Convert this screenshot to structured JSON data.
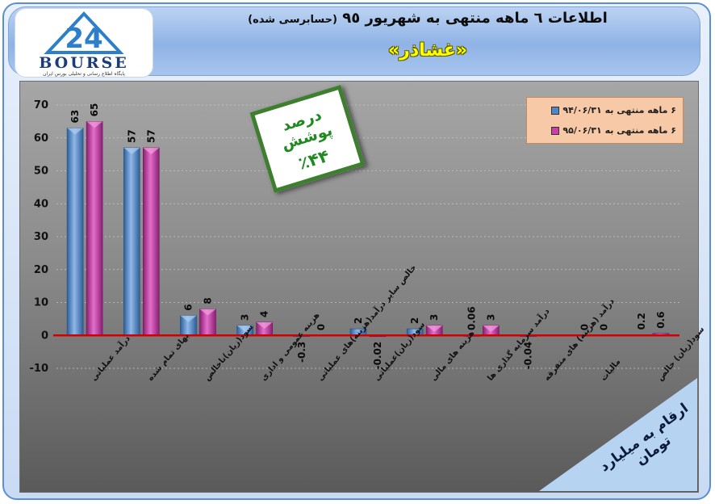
{
  "header": {
    "title": "اطلاعات ٦ ماهه منتهی به شهریور ٩٥",
    "title_note": "(حسابرسی شده)",
    "company": "«غشاذر»",
    "logo_text": "BOURSE",
    "logo_sub": "پایگاه اطلاع رسانی و تحلیلی بورس ایران"
  },
  "coverage_box": {
    "label": "درصد پوشش",
    "value": "٪۴۴"
  },
  "unit_note": "ارقام به میلیارد تومان",
  "colors": {
    "series_1": "#4f86c6",
    "series_2": "#c83fa8",
    "zero_line": "#d40000",
    "grid": "#c8c8c8"
  },
  "chart_data": {
    "type": "bar",
    "categories": [
      "درآمد عملیاتی",
      "بهای تمام شده",
      "سود(زیان)ناخالص",
      "هزینه عمومی و اداری",
      "خالص سایر درآمد(هزینه)های عملیاتی",
      "سود(زیان)عملیاتی",
      "هزینه های مالی",
      "درآمد سرمایه گذاری ها",
      "درآمد (هزینه) های متفرقه",
      "مالیات",
      "سود(زیان) خالص"
    ],
    "series": [
      {
        "name": "۶ ماهه منتهی به ۹۴/۰۶/۳۱",
        "values": [
          63,
          57,
          6,
          3,
          -0.3,
          2,
          2,
          0.06,
          -0.04,
          0,
          0.2
        ],
        "labels": [
          "63",
          "57",
          "6",
          "3",
          "-0.3",
          "2",
          "2",
          "0.06",
          "-0.04",
          "0",
          "0.2"
        ]
      },
      {
        "name": "۶ ماهه منتهی به ۹۵/۰۶/۳۱",
        "values": [
          65,
          57,
          8,
          4,
          0,
          -0.02,
          3,
          3,
          0,
          0,
          0.6
        ],
        "labels": [
          "65",
          "57",
          "8",
          "4",
          "0",
          "-0.02",
          "3",
          "3",
          "",
          "0",
          "0.6"
        ]
      }
    ],
    "ylim": [
      -10,
      70
    ],
    "yticks": [
      -10,
      0,
      10,
      20,
      30,
      40,
      50,
      60,
      70
    ],
    "grid": true,
    "legend": "top-right"
  }
}
